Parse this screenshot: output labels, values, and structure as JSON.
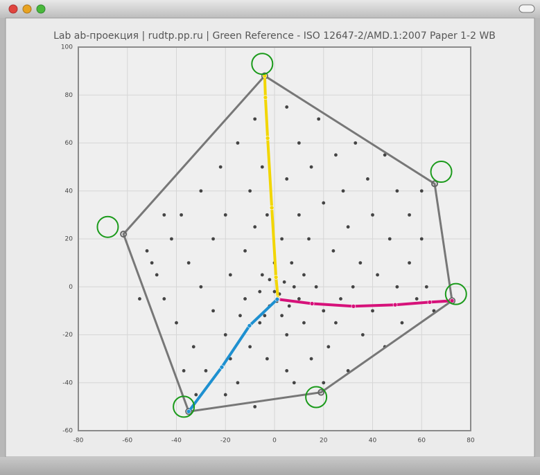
{
  "chart_data": {
    "type": "scatter",
    "title": "Lab ab-проекция | rudtp.pp.ru | Green Reference - ISO 12647-2/AMD.1:2007 Paper 1-2 WB",
    "xlim": [
      -80,
      80
    ],
    "xticks": [
      -80,
      -60,
      -40,
      -20,
      0,
      20,
      40,
      60,
      80
    ],
    "ylim": [
      -60,
      100
    ],
    "yticks": [
      -60,
      -40,
      -20,
      0,
      20,
      40,
      60,
      80,
      100
    ],
    "grid": true,
    "series": [
      {
        "type": "scatter",
        "color": "#444444",
        "x": [
          -52,
          -48,
          -45,
          -42,
          -40,
          -38,
          -35,
          -33,
          -30,
          -30,
          -28,
          -25,
          -25,
          -22,
          -20,
          -20,
          -18,
          -15,
          -15,
          -12,
          -12,
          -10,
          -10,
          -8,
          -8,
          -6,
          -5,
          -5,
          -3,
          -2,
          0,
          1,
          2,
          3,
          3,
          5,
          5,
          5,
          7,
          8,
          10,
          10,
          10,
          12,
          14,
          15,
          15,
          17,
          18,
          20,
          20,
          22,
          24,
          25,
          27,
          28,
          30,
          30,
          32,
          33,
          35,
          36,
          38,
          40,
          40,
          42,
          45,
          45,
          47,
          50,
          50,
          52,
          55,
          55,
          58,
          60,
          60,
          62,
          65,
          -55,
          -45,
          -37,
          -32,
          -20,
          -8,
          5,
          20,
          -50,
          -18,
          -3,
          8,
          -6,
          4,
          -2,
          6,
          -4,
          0,
          12,
          -14,
          25
        ],
        "values": [
          15,
          5,
          -5,
          20,
          -15,
          30,
          10,
          -25,
          40,
          0,
          -35,
          20,
          -10,
          50,
          30,
          -20,
          5,
          60,
          -40,
          15,
          -5,
          40,
          -25,
          70,
          25,
          -15,
          50,
          5,
          -30,
          -8,
          -2,
          -6,
          -3,
          20,
          -12,
          75,
          45,
          -20,
          10,
          -40,
          60,
          30,
          -5,
          -15,
          20,
          50,
          -30,
          0,
          70,
          35,
          -10,
          -25,
          15,
          55,
          -5,
          40,
          -35,
          25,
          0,
          60,
          10,
          -20,
          45,
          -10,
          30,
          5,
          55,
          -25,
          20,
          0,
          40,
          -15,
          30,
          10,
          -5,
          40,
          20,
          0,
          -10,
          -5,
          30,
          -35,
          -45,
          -45,
          -50,
          -35,
          -40,
          10,
          -30,
          30,
          0,
          -2,
          2,
          3,
          -8,
          -12,
          10,
          5,
          -12,
          -15
        ]
      },
      {
        "type": "polygon",
        "color": "#777777",
        "x": [
          -4,
          65.3,
          72.4,
          19,
          -35,
          -61.6
        ],
        "values": [
          88,
          43,
          -5.8,
          -44,
          -52,
          22
        ]
      },
      {
        "type": "line",
        "color": "#f2d600",
        "x": [
          1.4,
          0.6,
          -1.1,
          -2.8,
          -3.7,
          -4
        ],
        "values": [
          -4.6,
          4,
          33,
          62,
          79,
          88
        ]
      },
      {
        "type": "line",
        "color": "#d6127a",
        "x": [
          1.4,
          15.3,
          32.2,
          49.2,
          63.3,
          72.4
        ],
        "values": [
          -5.2,
          -7,
          -8.1,
          -7.5,
          -6.4,
          -5.8
        ]
      },
      {
        "type": "line",
        "color": "#1e90d0",
        "x": [
          1.1,
          -10.2,
          -21.5,
          -35
        ],
        "values": [
          -5.2,
          -16.2,
          -33.5,
          -52
        ]
      },
      {
        "type": "rings",
        "color": "#1a9a1a",
        "x": [
          -5,
          68,
          74,
          17,
          -37,
          -68
        ],
        "values": [
          93,
          48,
          -3,
          -46,
          -50,
          25
        ]
      }
    ]
  }
}
